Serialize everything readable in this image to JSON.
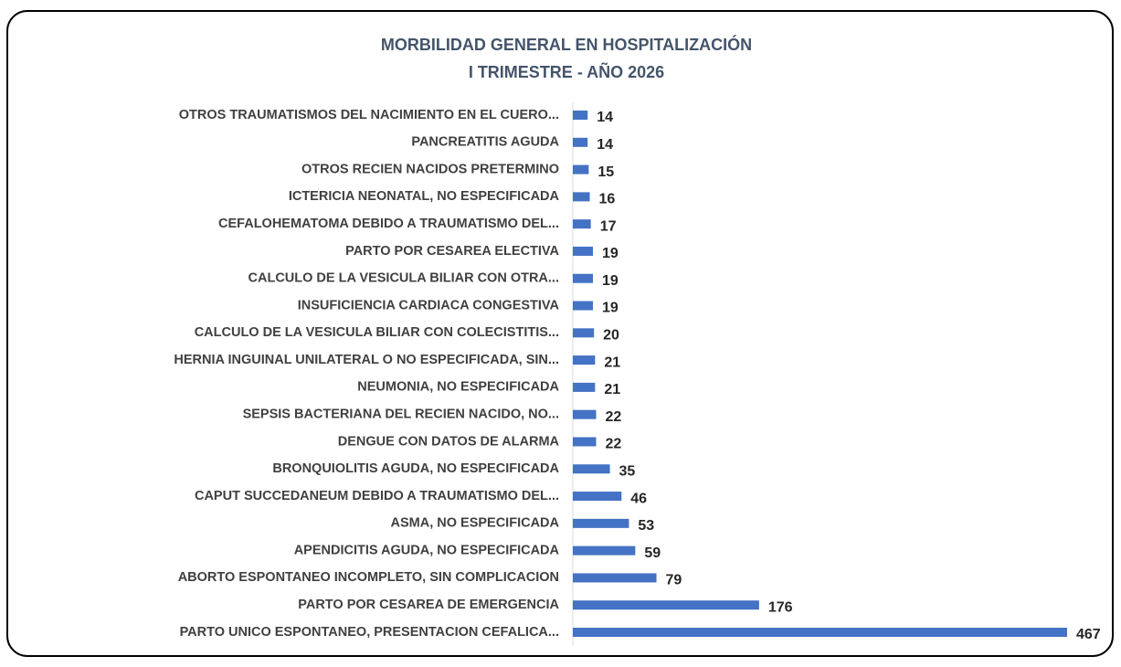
{
  "chart_data": {
    "type": "bar",
    "orientation": "horizontal",
    "title": "MORBILIDAD GENERAL EN HOSPITALIZACIÓN",
    "subtitle": "I TRIMESTRE - AÑO 2026",
    "categories": [
      "OTROS TRAUMATISMOS DEL NACIMIENTO EN EL CUERO...",
      "PANCREATITIS AGUDA",
      "OTROS RECIEN NACIDOS PRETERMINO",
      "ICTERICIA NEONATAL, NO ESPECIFICADA",
      "CEFALOHEMATOMA DEBIDO A TRAUMATISMO DEL...",
      "PARTO POR CESAREA ELECTIVA",
      "CALCULO DE LA VESICULA BILIAR CON OTRA...",
      "INSUFICIENCIA CARDIACA CONGESTIVA",
      "CALCULO DE LA VESICULA BILIAR CON COLECISTITIS...",
      "HERNIA INGUINAL UNILATERAL O NO ESPECIFICADA, SIN...",
      "NEUMONIA, NO ESPECIFICADA",
      "SEPSIS BACTERIANA DEL RECIEN NACIDO, NO...",
      "DENGUE CON DATOS DE ALARMA",
      "BRONQUIOLITIS AGUDA, NO ESPECIFICADA",
      "CAPUT SUCCEDANEUM DEBIDO A TRAUMATISMO DEL...",
      "ASMA, NO ESPECIFICADA",
      "APENDICITIS AGUDA, NO ESPECIFICADA",
      "ABORTO ESPONTANEO INCOMPLETO, SIN COMPLICACION",
      "PARTO POR CESAREA DE EMERGENCIA",
      "PARTO UNICO ESPONTANEO, PRESENTACION CEFALICA..."
    ],
    "values": [
      14,
      14,
      15,
      16,
      17,
      19,
      19,
      19,
      20,
      21,
      21,
      22,
      22,
      35,
      46,
      53,
      59,
      79,
      176,
      467
    ],
    "color": "#4472c4"
  }
}
